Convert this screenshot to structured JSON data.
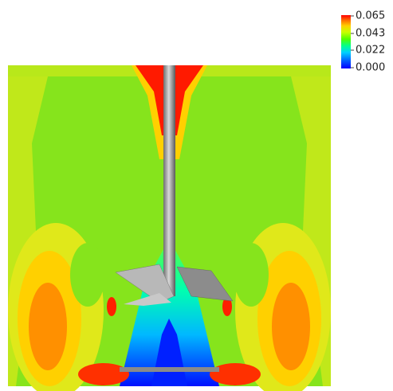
{
  "colorbar": {
    "lim": [
      0,
      0.065
    ],
    "ticks": [
      0.065,
      0.043,
      0.022,
      {
        "value": 0,
        "label": "0.000"
      }
    ]
  }
}
